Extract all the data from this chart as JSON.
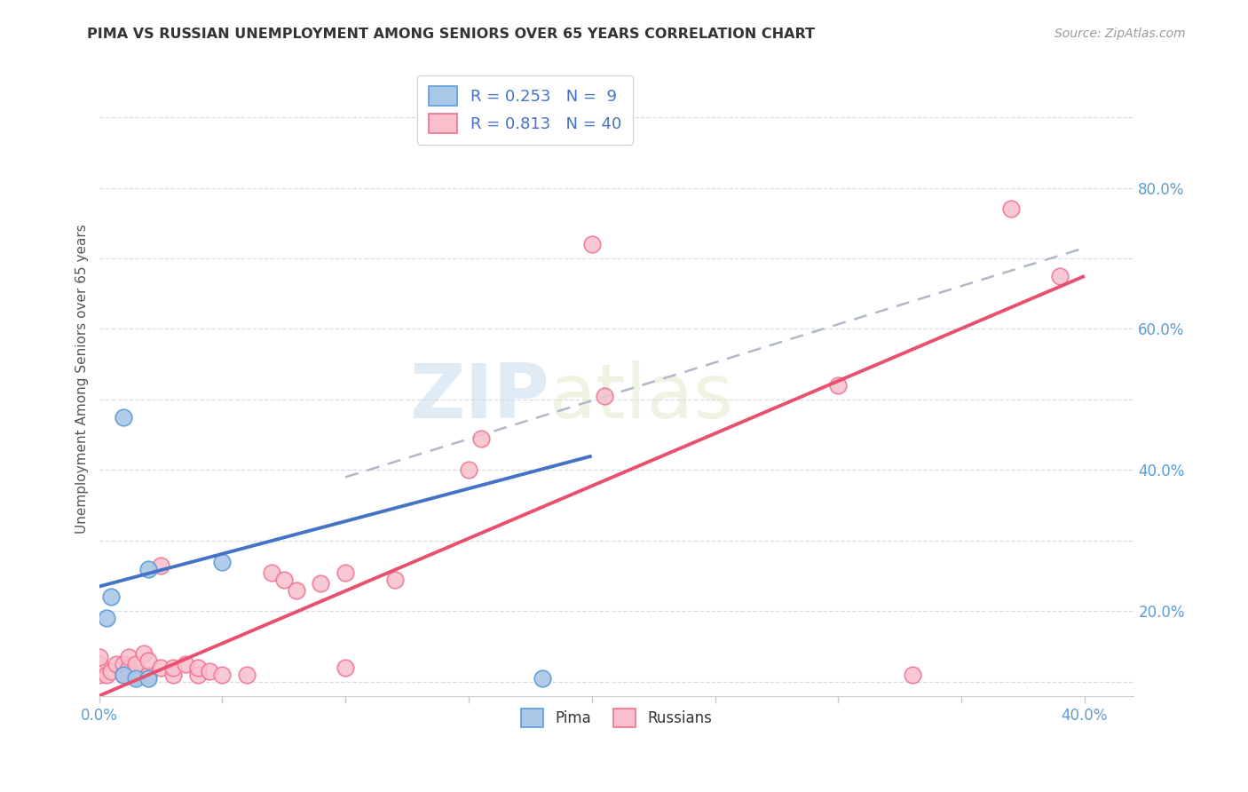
{
  "title": "PIMA VS RUSSIAN UNEMPLOYMENT AMONG SENIORS OVER 65 YEARS CORRELATION CHART",
  "source": "Source: ZipAtlas.com",
  "ylabel": "Unemployment Among Seniors over 65 years",
  "xlim": [
    0.0,
    0.42
  ],
  "ylim": [
    -0.02,
    0.88
  ],
  "x_ticks": [
    0.0,
    0.05,
    0.1,
    0.15,
    0.2,
    0.25,
    0.3,
    0.35,
    0.4
  ],
  "y_ticks": [
    0.0,
    0.1,
    0.2,
    0.3,
    0.4,
    0.5,
    0.6,
    0.7,
    0.8
  ],
  "y_tick_labels_right": [
    "",
    "20.0%",
    "",
    "40.0%",
    "",
    "60.0%",
    "",
    "80.0%",
    ""
  ],
  "pima_color": "#aac8e8",
  "russian_color": "#f9c0cc",
  "pima_edge_color": "#5b9bd5",
  "russian_edge_color": "#f07090",
  "pima_line_color": "#4472c4",
  "russian_line_color": "#e85070",
  "dashed_line_color": "#b0b8c8",
  "legend_pima_label": "R = 0.253   N =  9",
  "legend_russian_label": "R = 0.813   N = 40",
  "watermark_zip": "ZIP",
  "watermark_atlas": "atlas",
  "background_color": "#ffffff",
  "grid_color": "#d8dde8",
  "pima_x": [
    0.003,
    0.005,
    0.01,
    0.01,
    0.015,
    0.02,
    0.02,
    0.05,
    0.18
  ],
  "pima_y": [
    0.09,
    0.12,
    0.375,
    0.01,
    0.005,
    0.16,
    0.005,
    0.17,
    0.005
  ],
  "russian_x": [
    0.0,
    0.0,
    0.0,
    0.003,
    0.005,
    0.007,
    0.01,
    0.01,
    0.012,
    0.012,
    0.015,
    0.015,
    0.018,
    0.02,
    0.02,
    0.025,
    0.025,
    0.03,
    0.03,
    0.035,
    0.04,
    0.04,
    0.045,
    0.05,
    0.06,
    0.07,
    0.075,
    0.08,
    0.09,
    0.1,
    0.1,
    0.12,
    0.15,
    0.155,
    0.2,
    0.205,
    0.3,
    0.33,
    0.37,
    0.39
  ],
  "russian_y": [
    0.01,
    0.025,
    0.035,
    0.01,
    0.015,
    0.025,
    0.01,
    0.025,
    0.02,
    0.035,
    0.01,
    0.025,
    0.04,
    0.01,
    0.03,
    0.165,
    0.02,
    0.01,
    0.02,
    0.025,
    0.01,
    0.02,
    0.015,
    0.01,
    0.01,
    0.155,
    0.145,
    0.13,
    0.14,
    0.155,
    0.02,
    0.145,
    0.3,
    0.345,
    0.62,
    0.405,
    0.42,
    0.01,
    0.67,
    0.575
  ],
  "pima_line_x0": 0.0,
  "pima_line_x1": 0.2,
  "pima_line_y0": 0.135,
  "pima_line_y1": 0.32,
  "russian_line_x0": 0.0,
  "russian_line_x1": 0.4,
  "russian_line_y0": -0.02,
  "russian_line_y1": 0.575,
  "dash_line_x0": 0.1,
  "dash_line_x1": 0.4,
  "dash_line_y0": 0.29,
  "dash_line_y1": 0.615
}
